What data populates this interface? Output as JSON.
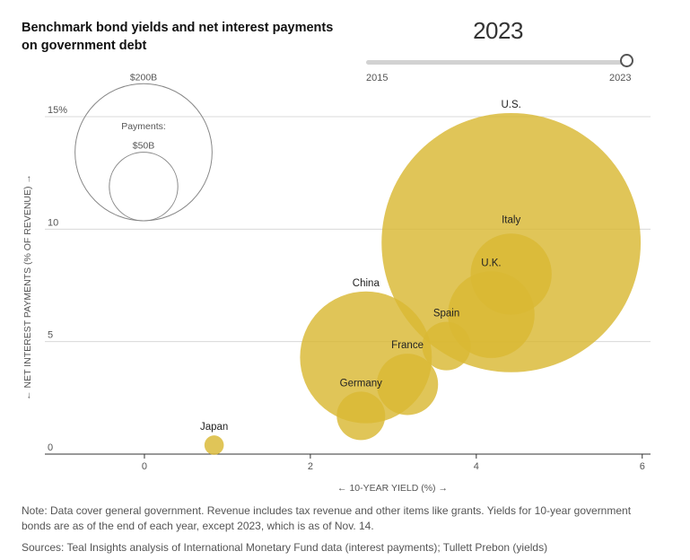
{
  "title": "Benchmark bond yields and net interest payments on government debt",
  "slider": {
    "current": "2023",
    "min_label": "2015",
    "max_label": "2023",
    "position": 1.0
  },
  "chart_data": {
    "type": "scatter",
    "title": "Benchmark bond yields and net interest payments on government debt",
    "xlabel": "← 10-YEAR YIELD (%) →",
    "ylabel": "← NET INTEREST PAYMENTS (% OF REVENUE) →",
    "xlim": [
      -1.2,
      6.1
    ],
    "ylim": [
      0,
      15
    ],
    "x_ticks": [
      0,
      2,
      4,
      6
    ],
    "y_ticks": [
      0,
      5,
      10,
      15
    ],
    "y_tick_labels": [
      "0",
      "5",
      "10",
      "15%"
    ],
    "grid": true,
    "bubble_color": "#d9b833",
    "size_legend": {
      "title": "Payments:",
      "items": [
        {
          "label": "$200B",
          "value": 200
        },
        {
          "label": "$50B",
          "value": 50
        }
      ]
    },
    "points": [
      {
        "label": "U.S.",
        "x": 4.42,
        "y": 9.4,
        "payments": 715
      },
      {
        "label": "Italy",
        "x": 4.42,
        "y": 8.0,
        "payments": 70
      },
      {
        "label": "U.K.",
        "x": 4.18,
        "y": 6.2,
        "payments": 80
      },
      {
        "label": "Spain",
        "x": 3.64,
        "y": 4.8,
        "payments": 25
      },
      {
        "label": "China",
        "x": 2.67,
        "y": 4.3,
        "payments": 185
      },
      {
        "label": "France",
        "x": 3.17,
        "y": 3.1,
        "payments": 40
      },
      {
        "label": "Germany",
        "x": 2.61,
        "y": 1.7,
        "payments": 25
      },
      {
        "label": "Japan",
        "x": 0.84,
        "y": 0.4,
        "payments": 4
      }
    ]
  },
  "note": "Note: Data cover general government. Revenue includes tax revenue and other items like grants. Yields for 10-year government bonds are as of the end of each year, except 2023, which is as of Nov. 14.",
  "sources": "Sources: Teal Insights analysis of International Monetary Fund data (interest payments); Tullett Prebon (yields)"
}
